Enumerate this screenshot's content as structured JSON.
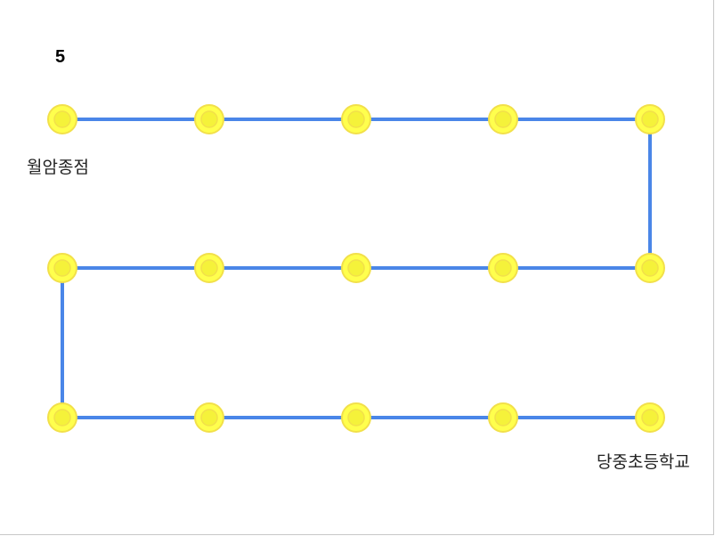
{
  "route": {
    "number": "5",
    "start_stop": "월암종점",
    "end_stop": "당중초등학교",
    "stop_count": 15,
    "stops_per_row": 5,
    "colors": {
      "line": "#4a86e8",
      "stop_fill": "#ffff4d",
      "stop_ring": "#f2e04a",
      "stop_inner": "#f5f23a"
    }
  }
}
